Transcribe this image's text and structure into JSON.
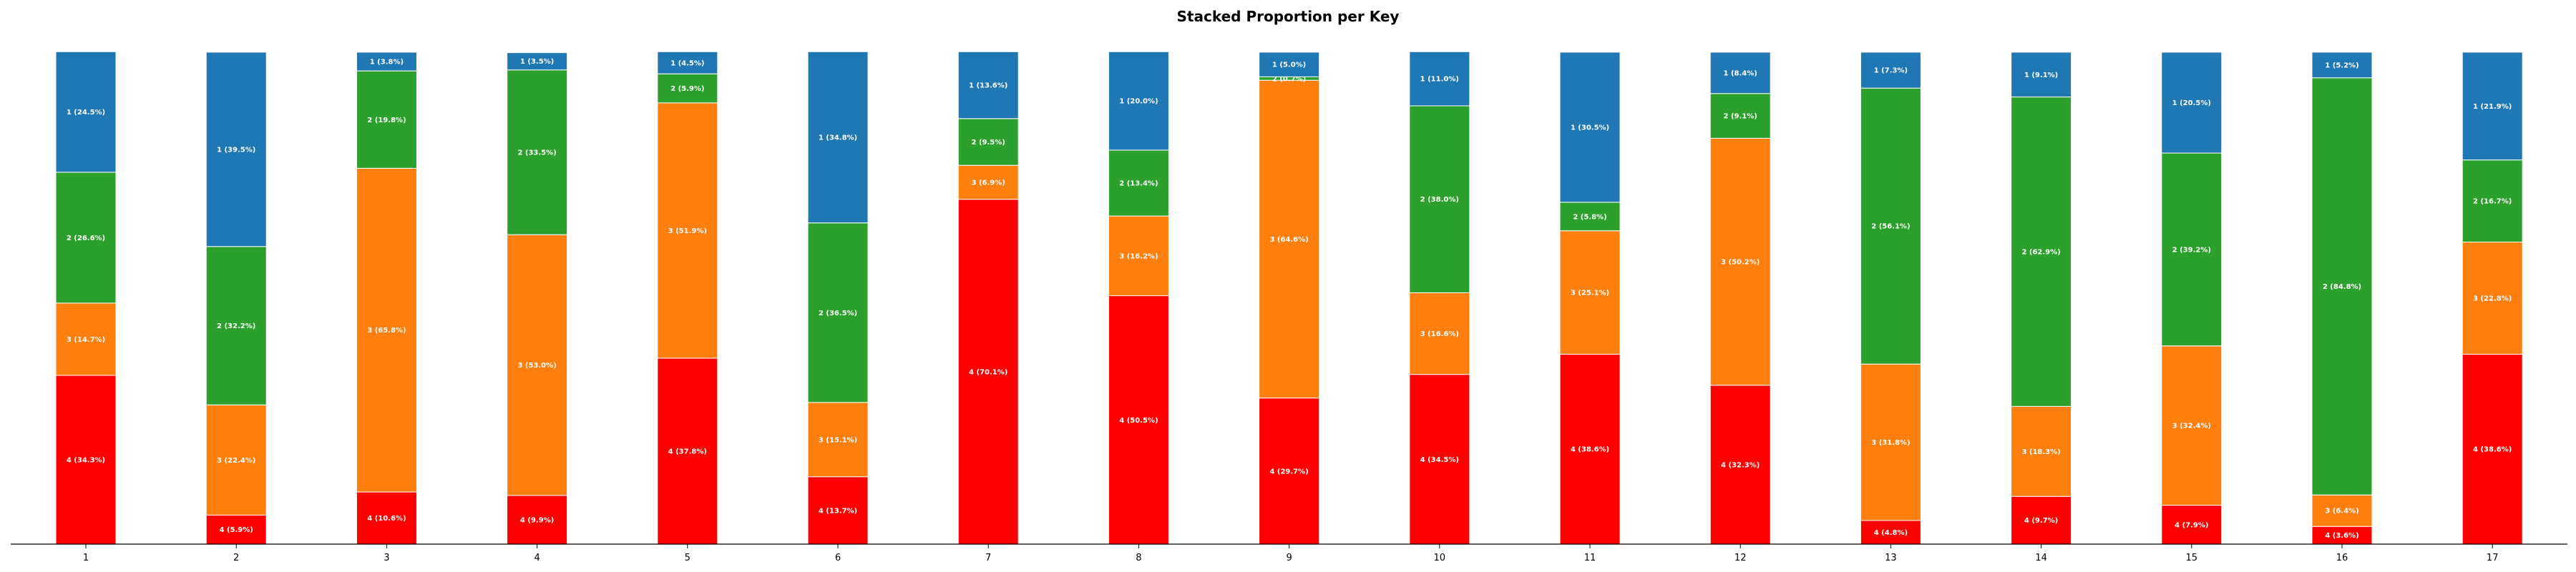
{
  "chart_data": {
    "type": "bar",
    "stacked": true,
    "normalized": true,
    "title": "Stacked Proportion per Key",
    "xlabel": "",
    "ylabel": "",
    "ylim": [
      0,
      100
    ],
    "grid": false,
    "legend": "none",
    "categories": [
      "1",
      "2",
      "3",
      "4",
      "5",
      "6",
      "7",
      "8",
      "9",
      "10",
      "11",
      "12",
      "13",
      "14",
      "15",
      "16",
      "17"
    ],
    "stack_order_bottom_to_top": [
      "4",
      "3",
      "2",
      "1"
    ],
    "series": [
      {
        "name": "4",
        "color": "#ff0000",
        "values": [
          34.3,
          5.9,
          10.6,
          9.9,
          37.8,
          13.7,
          70.1,
          50.5,
          29.7,
          34.5,
          38.6,
          32.3,
          4.8,
          9.7,
          7.9,
          3.6,
          38.6
        ]
      },
      {
        "name": "3",
        "color": "#ff7f0e",
        "values": [
          14.7,
          22.4,
          65.8,
          53.0,
          51.9,
          15.1,
          6.9,
          16.2,
          64.6,
          16.6,
          25.1,
          50.2,
          31.8,
          18.3,
          32.4,
          6.4,
          22.8
        ]
      },
      {
        "name": "2",
        "color": "#2ca02c",
        "values": [
          26.6,
          32.2,
          19.8,
          33.5,
          5.9,
          36.5,
          9.5,
          13.4,
          0.7,
          38.0,
          5.8,
          9.1,
          56.1,
          62.9,
          39.2,
          84.8,
          16.7
        ]
      },
      {
        "name": "1",
        "color": "#1f77b4",
        "values": [
          24.5,
          39.5,
          3.8,
          3.5,
          4.5,
          34.8,
          13.6,
          20.0,
          5.0,
          11.0,
          30.5,
          8.4,
          7.3,
          9.1,
          20.5,
          5.2,
          21.9
        ]
      }
    ]
  }
}
